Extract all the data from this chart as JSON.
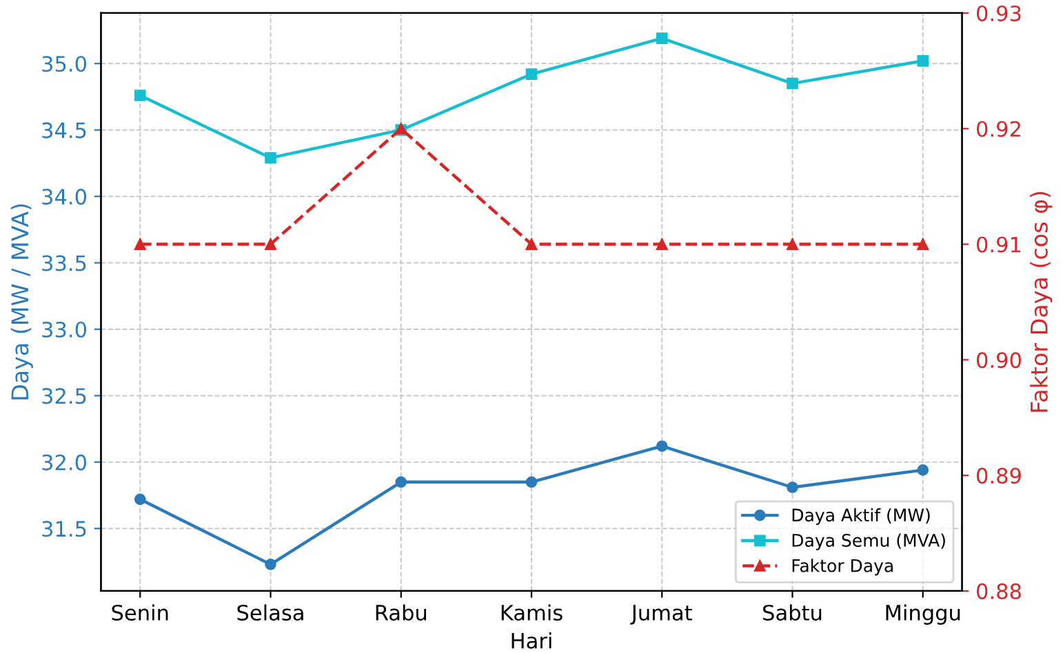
{
  "chart_data": {
    "type": "line",
    "xlabel": "Hari",
    "ylabel": "Daya (MW / MVA)",
    "y2label": "Faktor Daya (cos φ)",
    "categories": [
      "Senin",
      "Selasa",
      "Rabu",
      "Kamis",
      "Jumat",
      "Sabtu",
      "Minggu"
    ],
    "series": [
      {
        "name": "Daya Aktif (MW)",
        "color": "#2b7bba",
        "marker": "circle",
        "line_style": "solid",
        "values": [
          31.72,
          31.23,
          31.85,
          31.85,
          32.12,
          31.81,
          31.94
        ]
      },
      {
        "name": "Daya Semu (MVA)",
        "color": "#17becf",
        "marker": "square",
        "line_style": "solid",
        "values": [
          34.76,
          34.29,
          34.5,
          34.92,
          35.19,
          34.85,
          35.02
        ]
      },
      {
        "name": "Faktor Daya",
        "color": "#d62728",
        "marker": "triangle",
        "line_style": "dashed",
        "axis": "y2",
        "values": [
          0.91,
          0.91,
          0.92,
          0.91,
          0.91,
          0.91,
          0.91
        ]
      }
    ],
    "ylim": [
      31.03,
      35.38
    ],
    "yticks": [
      31.5,
      {
        "value": 32,
        "label": "32.0"
      },
      32.5,
      {
        "value": 33,
        "label": "33.0"
      },
      33.5,
      {
        "value": 34,
        "label": "34.0"
      },
      34.5,
      {
        "value": 35,
        "label": "35.0"
      }
    ],
    "y2lim": [
      0.88,
      0.93
    ],
    "y2ticks": [
      0.88,
      0.89,
      {
        "value": 0.9,
        "label": "0.90"
      },
      0.91,
      0.92,
      0.93
    ],
    "grid": true,
    "legend": "bottom right"
  }
}
